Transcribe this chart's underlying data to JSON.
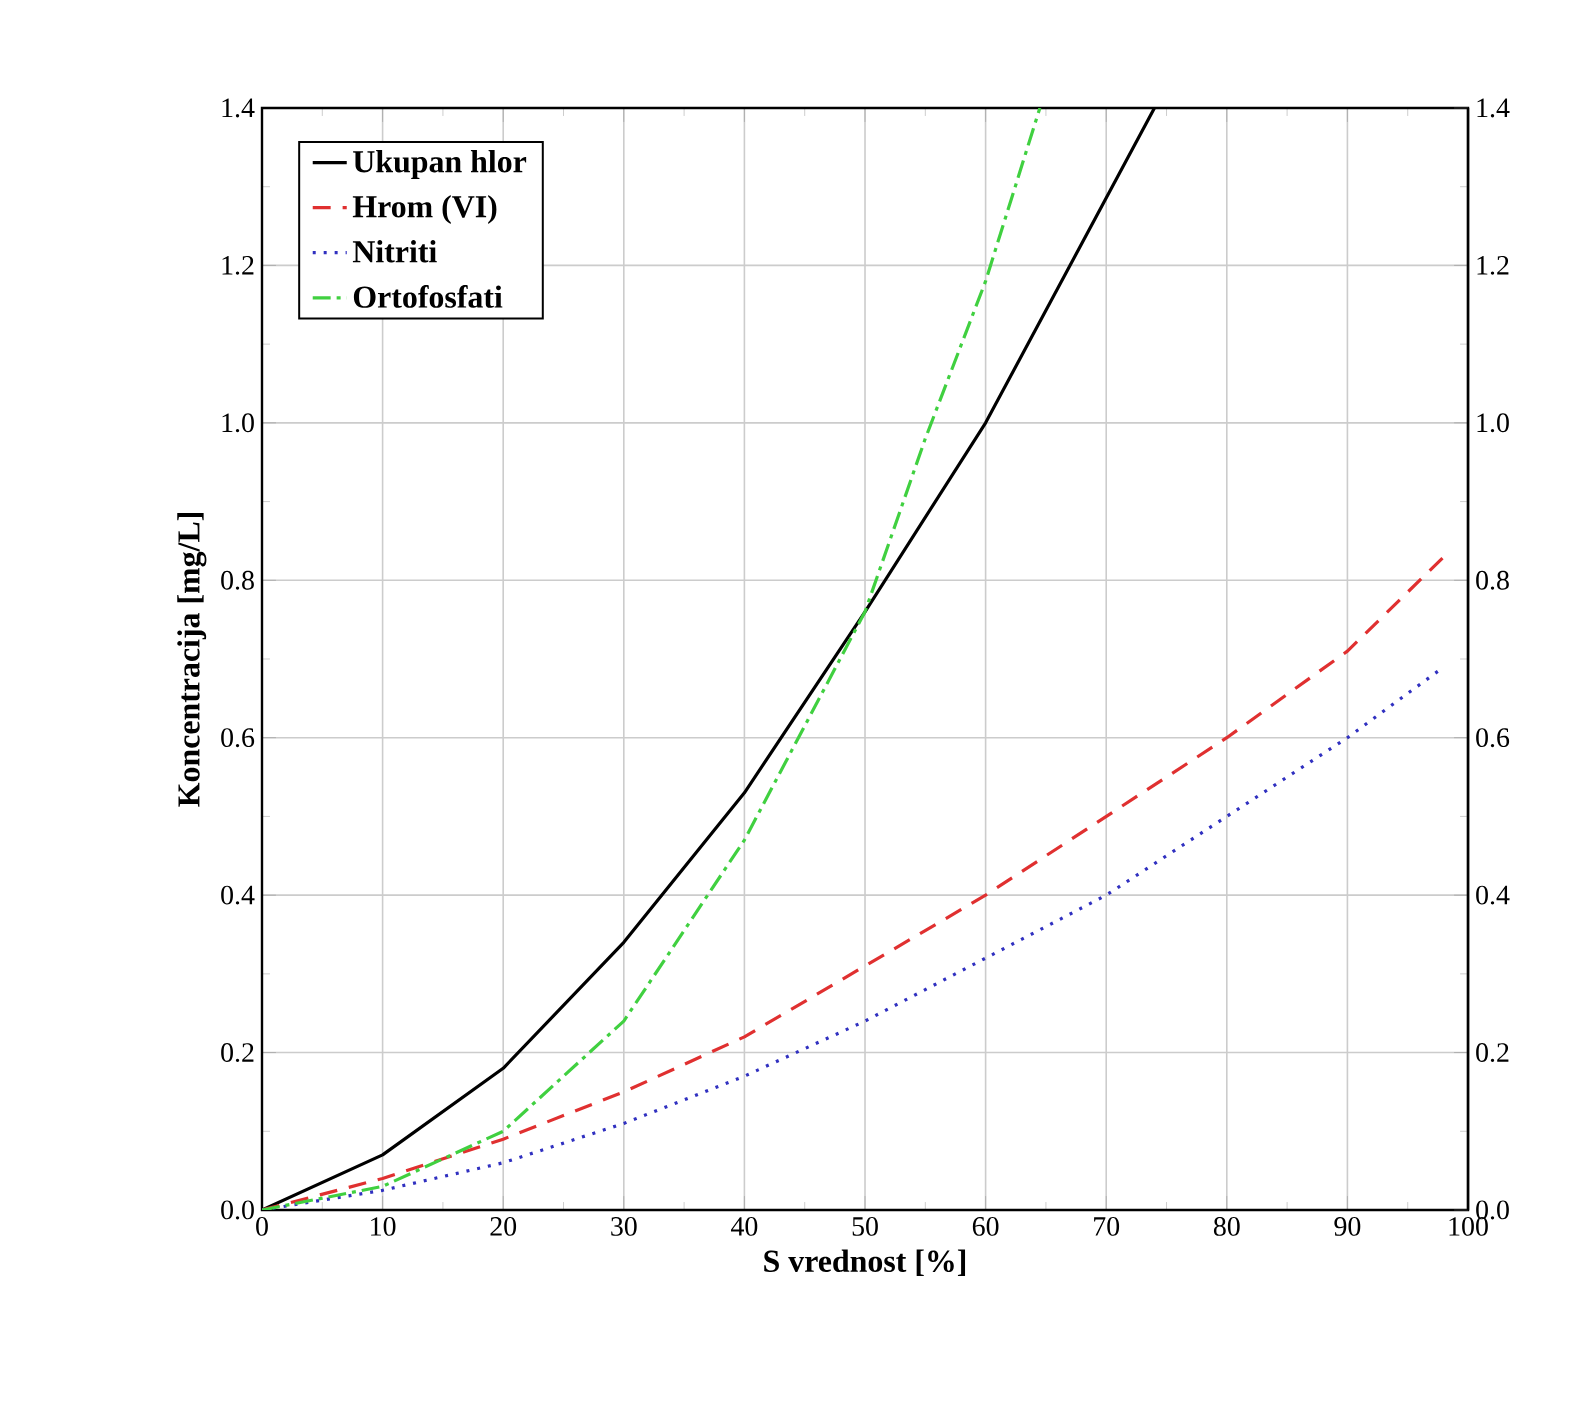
{
  "chart_data": {
    "type": "line",
    "xlabel": "S vrednost [%]",
    "ylabel": "Koncentracija [mg/L]",
    "xlim": [
      0,
      100
    ],
    "xticks": [
      0,
      10,
      20,
      30,
      40,
      50,
      60,
      70,
      80,
      90,
      100
    ],
    "ylim": [
      0,
      1.4
    ],
    "yticks": [
      {
        "value": 0,
        "label": "0.0"
      },
      {
        "value": 0.2,
        "label": "0.2"
      },
      {
        "value": 0.4,
        "label": "0.4"
      },
      {
        "value": 0.6,
        "label": "0.6"
      },
      {
        "value": 0.8,
        "label": "0.8"
      },
      {
        "value": 1.0,
        "label": "1.0"
      },
      {
        "value": 1.2,
        "label": "1.2"
      },
      {
        "value": 1.4,
        "label": "1.4"
      }
    ],
    "y2lim": [
      0,
      1.4
    ],
    "y2ticks": [
      {
        "value": 0,
        "label": "0.0"
      },
      {
        "value": 0.2,
        "label": "0.2"
      },
      {
        "value": 0.4,
        "label": "0.4"
      },
      {
        "value": 0.6,
        "label": "0.6"
      },
      {
        "value": 0.8,
        "label": "0.8"
      },
      {
        "value": 1.0,
        "label": "1.0"
      },
      {
        "value": 1.2,
        "label": "1.2"
      },
      {
        "value": 1.4,
        "label": "1.4"
      }
    ],
    "grid": true,
    "legend": "top left",
    "series": [
      {
        "name": "Ukupan hlor",
        "color": "#000000",
        "line_style": "solid",
        "x": [
          0,
          10,
          20,
          30,
          40,
          50,
          60,
          67,
          74
        ],
        "values": [
          0,
          0.07,
          0.18,
          0.34,
          0.53,
          0.76,
          1.0,
          1.2,
          1.4
        ]
      },
      {
        "name": "Hrom (VI)",
        "color": "#e03030",
        "line_style": "dashed",
        "x": [
          0,
          10,
          20,
          30,
          40,
          50,
          60,
          70,
          80,
          90,
          98
        ],
        "values": [
          0,
          0.04,
          0.09,
          0.15,
          0.22,
          0.31,
          0.4,
          0.5,
          0.6,
          0.71,
          0.83
        ]
      },
      {
        "name": "Nitriti",
        "color": "#3030c0",
        "line_style": "dotted",
        "x": [
          0,
          10,
          20,
          30,
          40,
          50,
          60,
          70,
          80,
          90,
          98
        ],
        "values": [
          0,
          0.025,
          0.06,
          0.11,
          0.17,
          0.24,
          0.32,
          0.4,
          0.5,
          0.6,
          0.69
        ]
      },
      {
        "name": "Ortofosfati",
        "color": "#40d040",
        "line_style": "dashdot",
        "x": [
          0,
          10,
          20,
          30,
          40,
          50,
          55,
          60,
          64.5
        ],
        "values": [
          0,
          0.03,
          0.1,
          0.24,
          0.47,
          0.76,
          0.98,
          1.18,
          1.4
        ]
      }
    ]
  }
}
